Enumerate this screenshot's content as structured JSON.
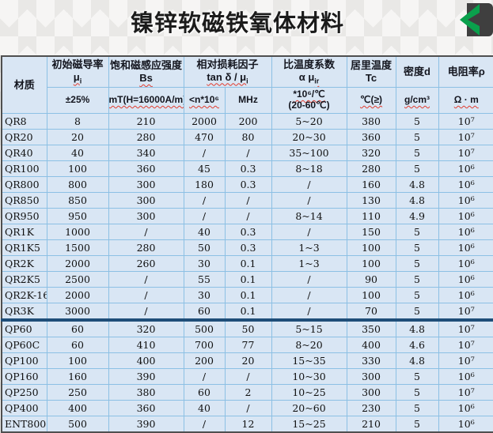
{
  "title": "镍锌软磁铁氧体材料",
  "corner_icon": {
    "name": "back-chevron-icon",
    "green": "#0aa04c",
    "dark": "#3f3f3f"
  },
  "table": {
    "header": {
      "material": "材质",
      "mu": {
        "title": "初始磁导率",
        "sym": "μ",
        "sub": "i",
        "unit": "±25%"
      },
      "bs": {
        "title": "饱和磁感应强度",
        "sym": "Bs",
        "unit": "mT(H=16000A/m)"
      },
      "loss": {
        "title": "相对损耗因子",
        "sym": "tan δ / μ",
        "sub": "i",
        "unit1": "<n*10⁶",
        "unit2": "MHz"
      },
      "alpha": {
        "title": "比温度系数",
        "sym": "α μ",
        "sub": "ir",
        "unit1": "*10⁶/℃",
        "unit2": "(20-60℃)"
      },
      "tc": {
        "title": "居里温度",
        "sym": "Tc",
        "unit": "℃(≥)"
      },
      "density": {
        "title": "密度d",
        "unit": "g/cm³"
      },
      "rho": {
        "title": "电阻率ρ",
        "unit": "Ω · m"
      }
    },
    "rows": [
      {
        "name": "QR8",
        "mu": "8",
        "bs": "210",
        "loss_n": "2000",
        "loss_mhz": "200",
        "alpha": "5~20",
        "tc": "380",
        "density": "5",
        "rho": "10⁷"
      },
      {
        "name": "QR20",
        "mu": "20",
        "bs": "280",
        "loss_n": "470",
        "loss_mhz": "80",
        "alpha": "20~30",
        "tc": "360",
        "density": "5",
        "rho": "10⁷"
      },
      {
        "name": "QR40",
        "mu": "40",
        "bs": "340",
        "loss_n": "/",
        "loss_mhz": "/",
        "alpha": "35~100",
        "tc": "320",
        "density": "5",
        "rho": "10⁷"
      },
      {
        "name": "QR100",
        "mu": "100",
        "bs": "360",
        "loss_n": "45",
        "loss_mhz": "0.3",
        "alpha": "8~18",
        "tc": "280",
        "density": "5",
        "rho": "10⁶"
      },
      {
        "name": "QR800",
        "mu": "800",
        "bs": "300",
        "loss_n": "180",
        "loss_mhz": "0.3",
        "alpha": "/",
        "tc": "160",
        "density": "4.8",
        "rho": "10⁶"
      },
      {
        "name": "QR850",
        "mu": "850",
        "bs": "300",
        "loss_n": "/",
        "loss_mhz": "/",
        "alpha": "/",
        "tc": "130",
        "density": "4.8",
        "rho": "10⁶"
      },
      {
        "name": "QR950",
        "mu": "950",
        "bs": "300",
        "loss_n": "/",
        "loss_mhz": "/",
        "alpha": "8~14",
        "tc": "110",
        "density": "4.9",
        "rho": "10⁶"
      },
      {
        "name": "QR1K",
        "mu": "1000",
        "bs": "/",
        "loss_n": "40",
        "loss_mhz": "0.3",
        "alpha": "/",
        "tc": "150",
        "density": "5",
        "rho": "10⁶"
      },
      {
        "name": "QR1K5",
        "mu": "1500",
        "bs": "280",
        "loss_n": "50",
        "loss_mhz": "0.3",
        "alpha": "1~3",
        "tc": "100",
        "density": "5",
        "rho": "10⁶"
      },
      {
        "name": "QR2K",
        "mu": "2000",
        "bs": "260",
        "loss_n": "30",
        "loss_mhz": "0.1",
        "alpha": "1~3",
        "tc": "100",
        "density": "5",
        "rho": "10⁶"
      },
      {
        "name": "QR2K5",
        "mu": "2500",
        "bs": "/",
        "loss_n": "55",
        "loss_mhz": "0.1",
        "alpha": "/",
        "tc": "90",
        "density": "5",
        "rho": "10⁶"
      },
      {
        "name": "QR2K-16",
        "mu": "2000",
        "bs": "/",
        "loss_n": "30",
        "loss_mhz": "0.1",
        "alpha": "/",
        "tc": "100",
        "density": "5",
        "rho": "10⁶"
      },
      {
        "name": "QR3K",
        "mu": "3000",
        "bs": "/",
        "loss_n": "60",
        "loss_mhz": "0.1",
        "alpha": "/",
        "tc": "70",
        "density": "5",
        "rho": "10⁷"
      },
      {
        "name": "QP60",
        "mu": "60",
        "bs": "320",
        "loss_n": "500",
        "loss_mhz": "50",
        "alpha": "5~15",
        "tc": "350",
        "density": "4.8",
        "rho": "10⁷",
        "section_break": true
      },
      {
        "name": "QP60C",
        "mu": "60",
        "bs": "410",
        "loss_n": "700",
        "loss_mhz": "77",
        "alpha": "8~20",
        "tc": "400",
        "density": "4.6",
        "rho": "10⁷"
      },
      {
        "name": "QP100",
        "mu": "100",
        "bs": "400",
        "loss_n": "200",
        "loss_mhz": "20",
        "alpha": "15~35",
        "tc": "330",
        "density": "4.8",
        "rho": "10⁷"
      },
      {
        "name": "QP160",
        "mu": "160",
        "bs": "390",
        "loss_n": "/",
        "loss_mhz": "/",
        "alpha": "10~30",
        "tc": "300",
        "density": "5",
        "rho": "10⁶"
      },
      {
        "name": "QP250",
        "mu": "250",
        "bs": "380",
        "loss_n": "60",
        "loss_mhz": "2",
        "alpha": "10~25",
        "tc": "300",
        "density": "5",
        "rho": "10⁷"
      },
      {
        "name": "QP400",
        "mu": "400",
        "bs": "360",
        "loss_n": "40",
        "loss_mhz": "/",
        "alpha": "20~60",
        "tc": "230",
        "density": "5",
        "rho": "10⁶"
      },
      {
        "name": "ENT800",
        "mu": "500",
        "bs": "390",
        "loss_n": "/",
        "loss_mhz": "12",
        "alpha": "15~25",
        "tc": "210",
        "density": "5",
        "rho": "10⁶"
      }
    ]
  }
}
